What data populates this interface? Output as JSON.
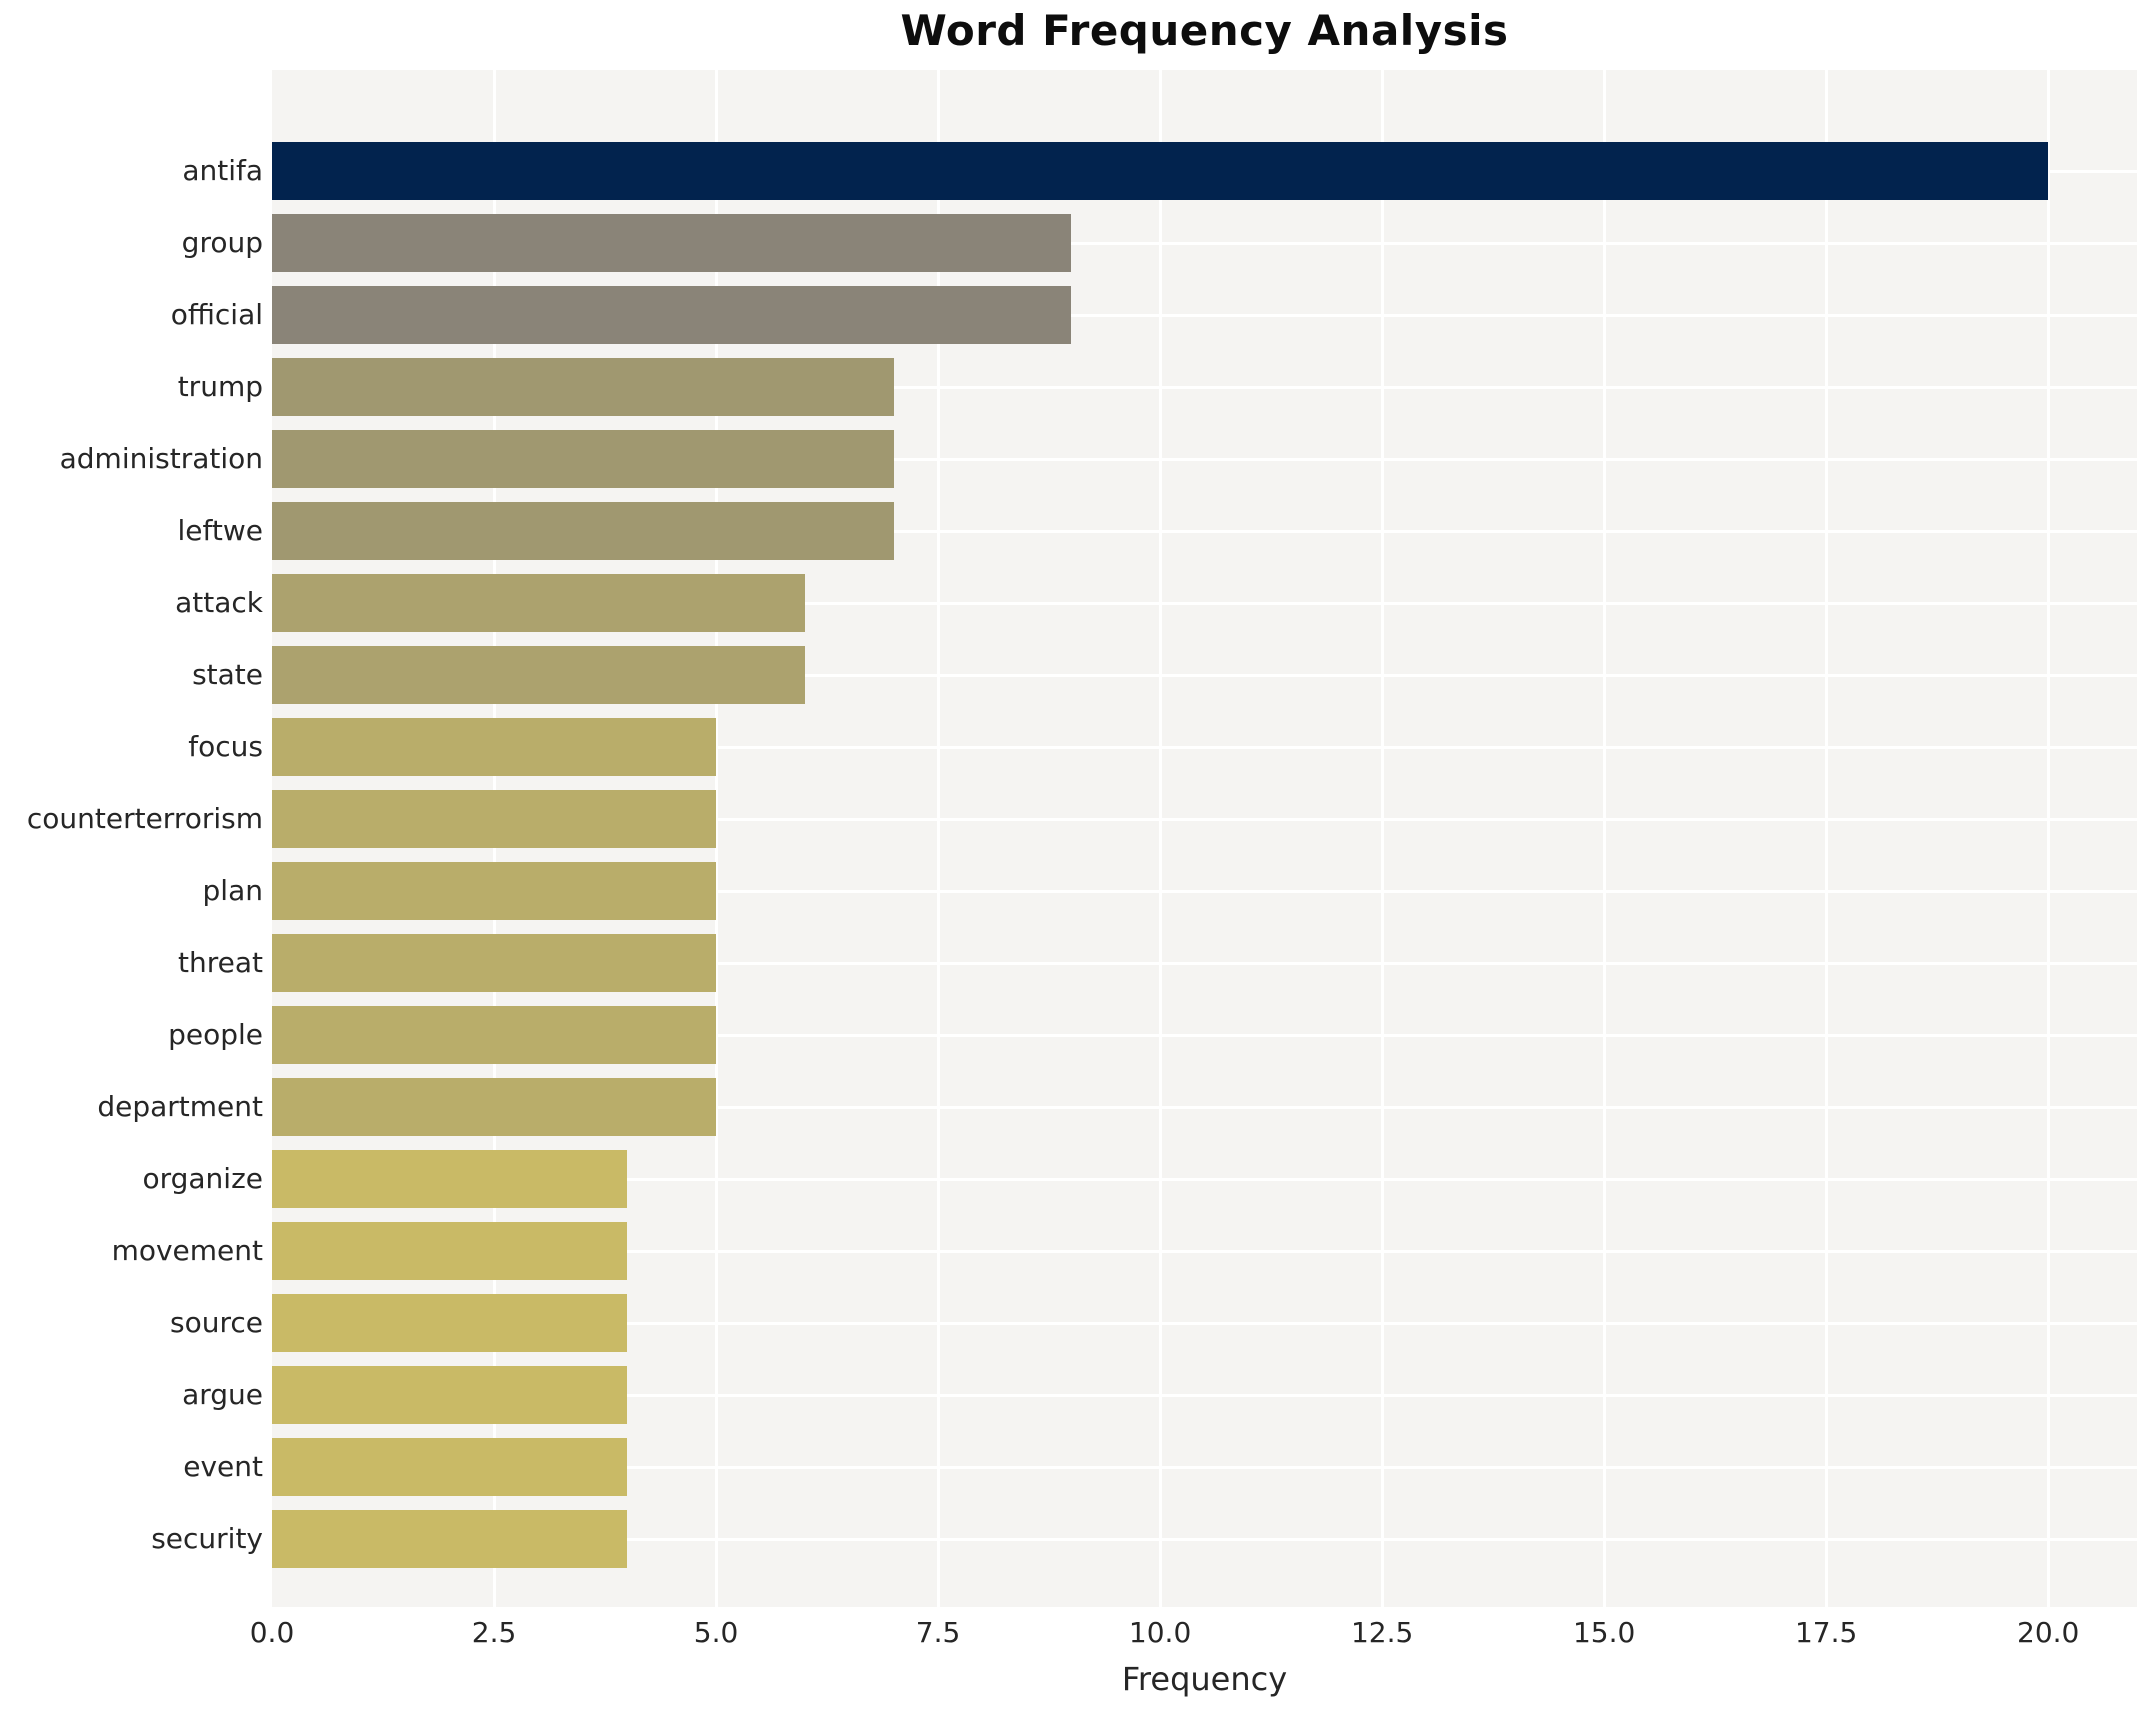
{
  "chart_data": {
    "type": "bar",
    "orientation": "horizontal",
    "title": "Word Frequency Analysis",
    "xlabel": "Frequency",
    "ylabel": "",
    "xlim": [
      0,
      21.0
    ],
    "xticks": [
      0.0,
      2.5,
      5.0,
      7.5,
      10.0,
      12.5,
      15.0,
      17.5,
      20.0
    ],
    "grid": true,
    "legend": "none",
    "plot_background": "#f5f4f2",
    "gridline_color": "#ffffff",
    "categories": [
      "antifa",
      "group",
      "official",
      "trump",
      "administration",
      "leftwe",
      "attack",
      "state",
      "focus",
      "counterterrorism",
      "plan",
      "threat",
      "people",
      "department",
      "organize",
      "movement",
      "source",
      "argue",
      "event",
      "security"
    ],
    "values": [
      20,
      9,
      9,
      7,
      7,
      7,
      6,
      6,
      5,
      5,
      5,
      5,
      5,
      5,
      4,
      4,
      4,
      4,
      4,
      4
    ],
    "bar_colors": [
      "#02234e",
      "#8a8478",
      "#8a8478",
      "#a09870",
      "#a09870",
      "#a09870",
      "#aca26e",
      "#aca26e",
      "#b9ad6a",
      "#b9ad6a",
      "#b9ad6a",
      "#b9ad6a",
      "#b9ad6a",
      "#b9ad6a",
      "#c9ba66",
      "#c9ba66",
      "#c9ba66",
      "#c9ba66",
      "#c9ba66",
      "#c9ba66"
    ]
  }
}
